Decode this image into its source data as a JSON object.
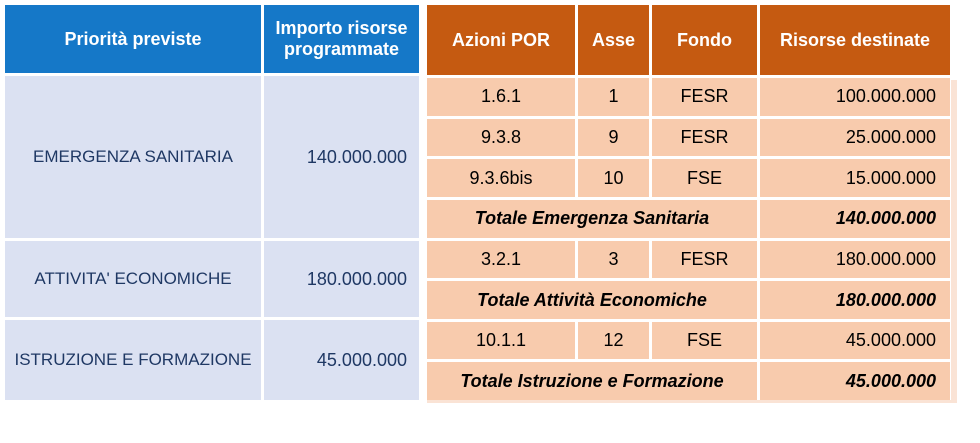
{
  "left_table": {
    "headers": [
      "Priorità previste",
      "Importo risorse programmate"
    ],
    "rows": [
      {
        "priority": "EMERGENZA SANITARIA",
        "amount": "140.000.000"
      },
      {
        "priority": "ATTIVITA' ECONOMICHE",
        "amount": "180.000.000"
      },
      {
        "priority": "ISTRUZIONE E FORMAZIONE",
        "amount": "45.000.000"
      }
    ]
  },
  "right_table": {
    "headers": [
      "Azioni POR",
      "Asse",
      "Fondo",
      "Risorse destinate"
    ],
    "rows": [
      {
        "azione": "1.6.1",
        "asse": "1",
        "fondo": "FESR",
        "risorse": "100.000.000"
      },
      {
        "azione": "9.3.8",
        "asse": "9",
        "fondo": "FESR",
        "risorse": "25.000.000"
      },
      {
        "azione": "9.3.6bis",
        "asse": "10",
        "fondo": "FSE",
        "risorse": "15.000.000"
      },
      {
        "label": "Totale Emergenza Sanitaria",
        "risorse": "140.000.000"
      },
      {
        "azione": "3.2.1",
        "asse": "3",
        "fondo": "FESR",
        "risorse": "180.000.000"
      },
      {
        "label": "Totale Attività Economiche",
        "risorse": "180.000.000"
      },
      {
        "azione": "10.1.1",
        "asse": "12",
        "fondo": "FSE",
        "risorse": "45.000.000"
      },
      {
        "label": "Totale Istruzione e Formazione",
        "risorse": "45.000.000"
      }
    ]
  },
  "colors": {
    "header_blue": "#1578C8",
    "header_orange": "#C55A11",
    "body_blue": "#DBE1F2",
    "body_orange": "#F8CBAD",
    "text_navy": "#1F3864",
    "text_black": "#000000",
    "border_white": "#FFFFFF",
    "edge_highlight": "#FAE3D5"
  }
}
